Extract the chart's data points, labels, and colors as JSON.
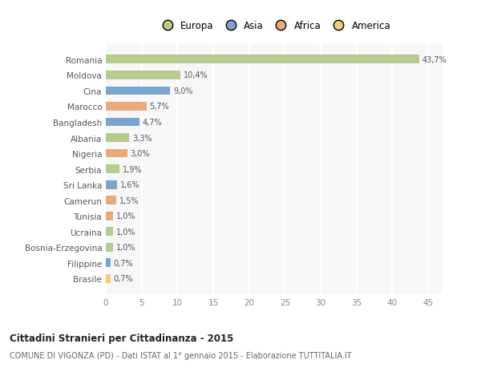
{
  "countries": [
    "Romania",
    "Moldova",
    "Cina",
    "Marocco",
    "Bangladesh",
    "Albania",
    "Nigeria",
    "Serbia",
    "Sri Lanka",
    "Camerun",
    "Tunisia",
    "Ucraina",
    "Bosnia-Erzegovina",
    "Filippine",
    "Brasile"
  ],
  "values": [
    43.7,
    10.4,
    9.0,
    5.7,
    4.7,
    3.3,
    3.0,
    1.9,
    1.6,
    1.5,
    1.0,
    1.0,
    1.0,
    0.7,
    0.7
  ],
  "labels": [
    "43,7%",
    "10,4%",
    "9,0%",
    "5,7%",
    "4,7%",
    "3,3%",
    "3,0%",
    "1,9%",
    "1,6%",
    "1,5%",
    "1,0%",
    "1,0%",
    "1,0%",
    "0,7%",
    "0,7%"
  ],
  "continents": [
    "Europa",
    "Europa",
    "Asia",
    "Africa",
    "Asia",
    "Europa",
    "Africa",
    "Europa",
    "Asia",
    "Africa",
    "Africa",
    "Europa",
    "Europa",
    "Asia",
    "America"
  ],
  "colors": {
    "Europa": "#b5cc8e",
    "Asia": "#7ba3cc",
    "Africa": "#e8a97e",
    "America": "#f0cf72"
  },
  "legend_labels": [
    "Europa",
    "Asia",
    "Africa",
    "America"
  ],
  "legend_colors": [
    "#b5cc8e",
    "#7ba3cc",
    "#e8a97e",
    "#f0cf72"
  ],
  "title": "Cittadini Stranieri per Cittadinanza - 2015",
  "subtitle": "COMUNE DI VIGONZA (PD) - Dati ISTAT al 1° gennaio 2015 - Elaborazione TUTTITALIA.IT",
  "xlim": [
    0,
    47
  ],
  "xticks": [
    0,
    5,
    10,
    15,
    20,
    25,
    30,
    35,
    40,
    45
  ],
  "background_color": "#ffffff",
  "plot_bg_color": "#f7f7f7",
  "grid_color": "#ffffff"
}
